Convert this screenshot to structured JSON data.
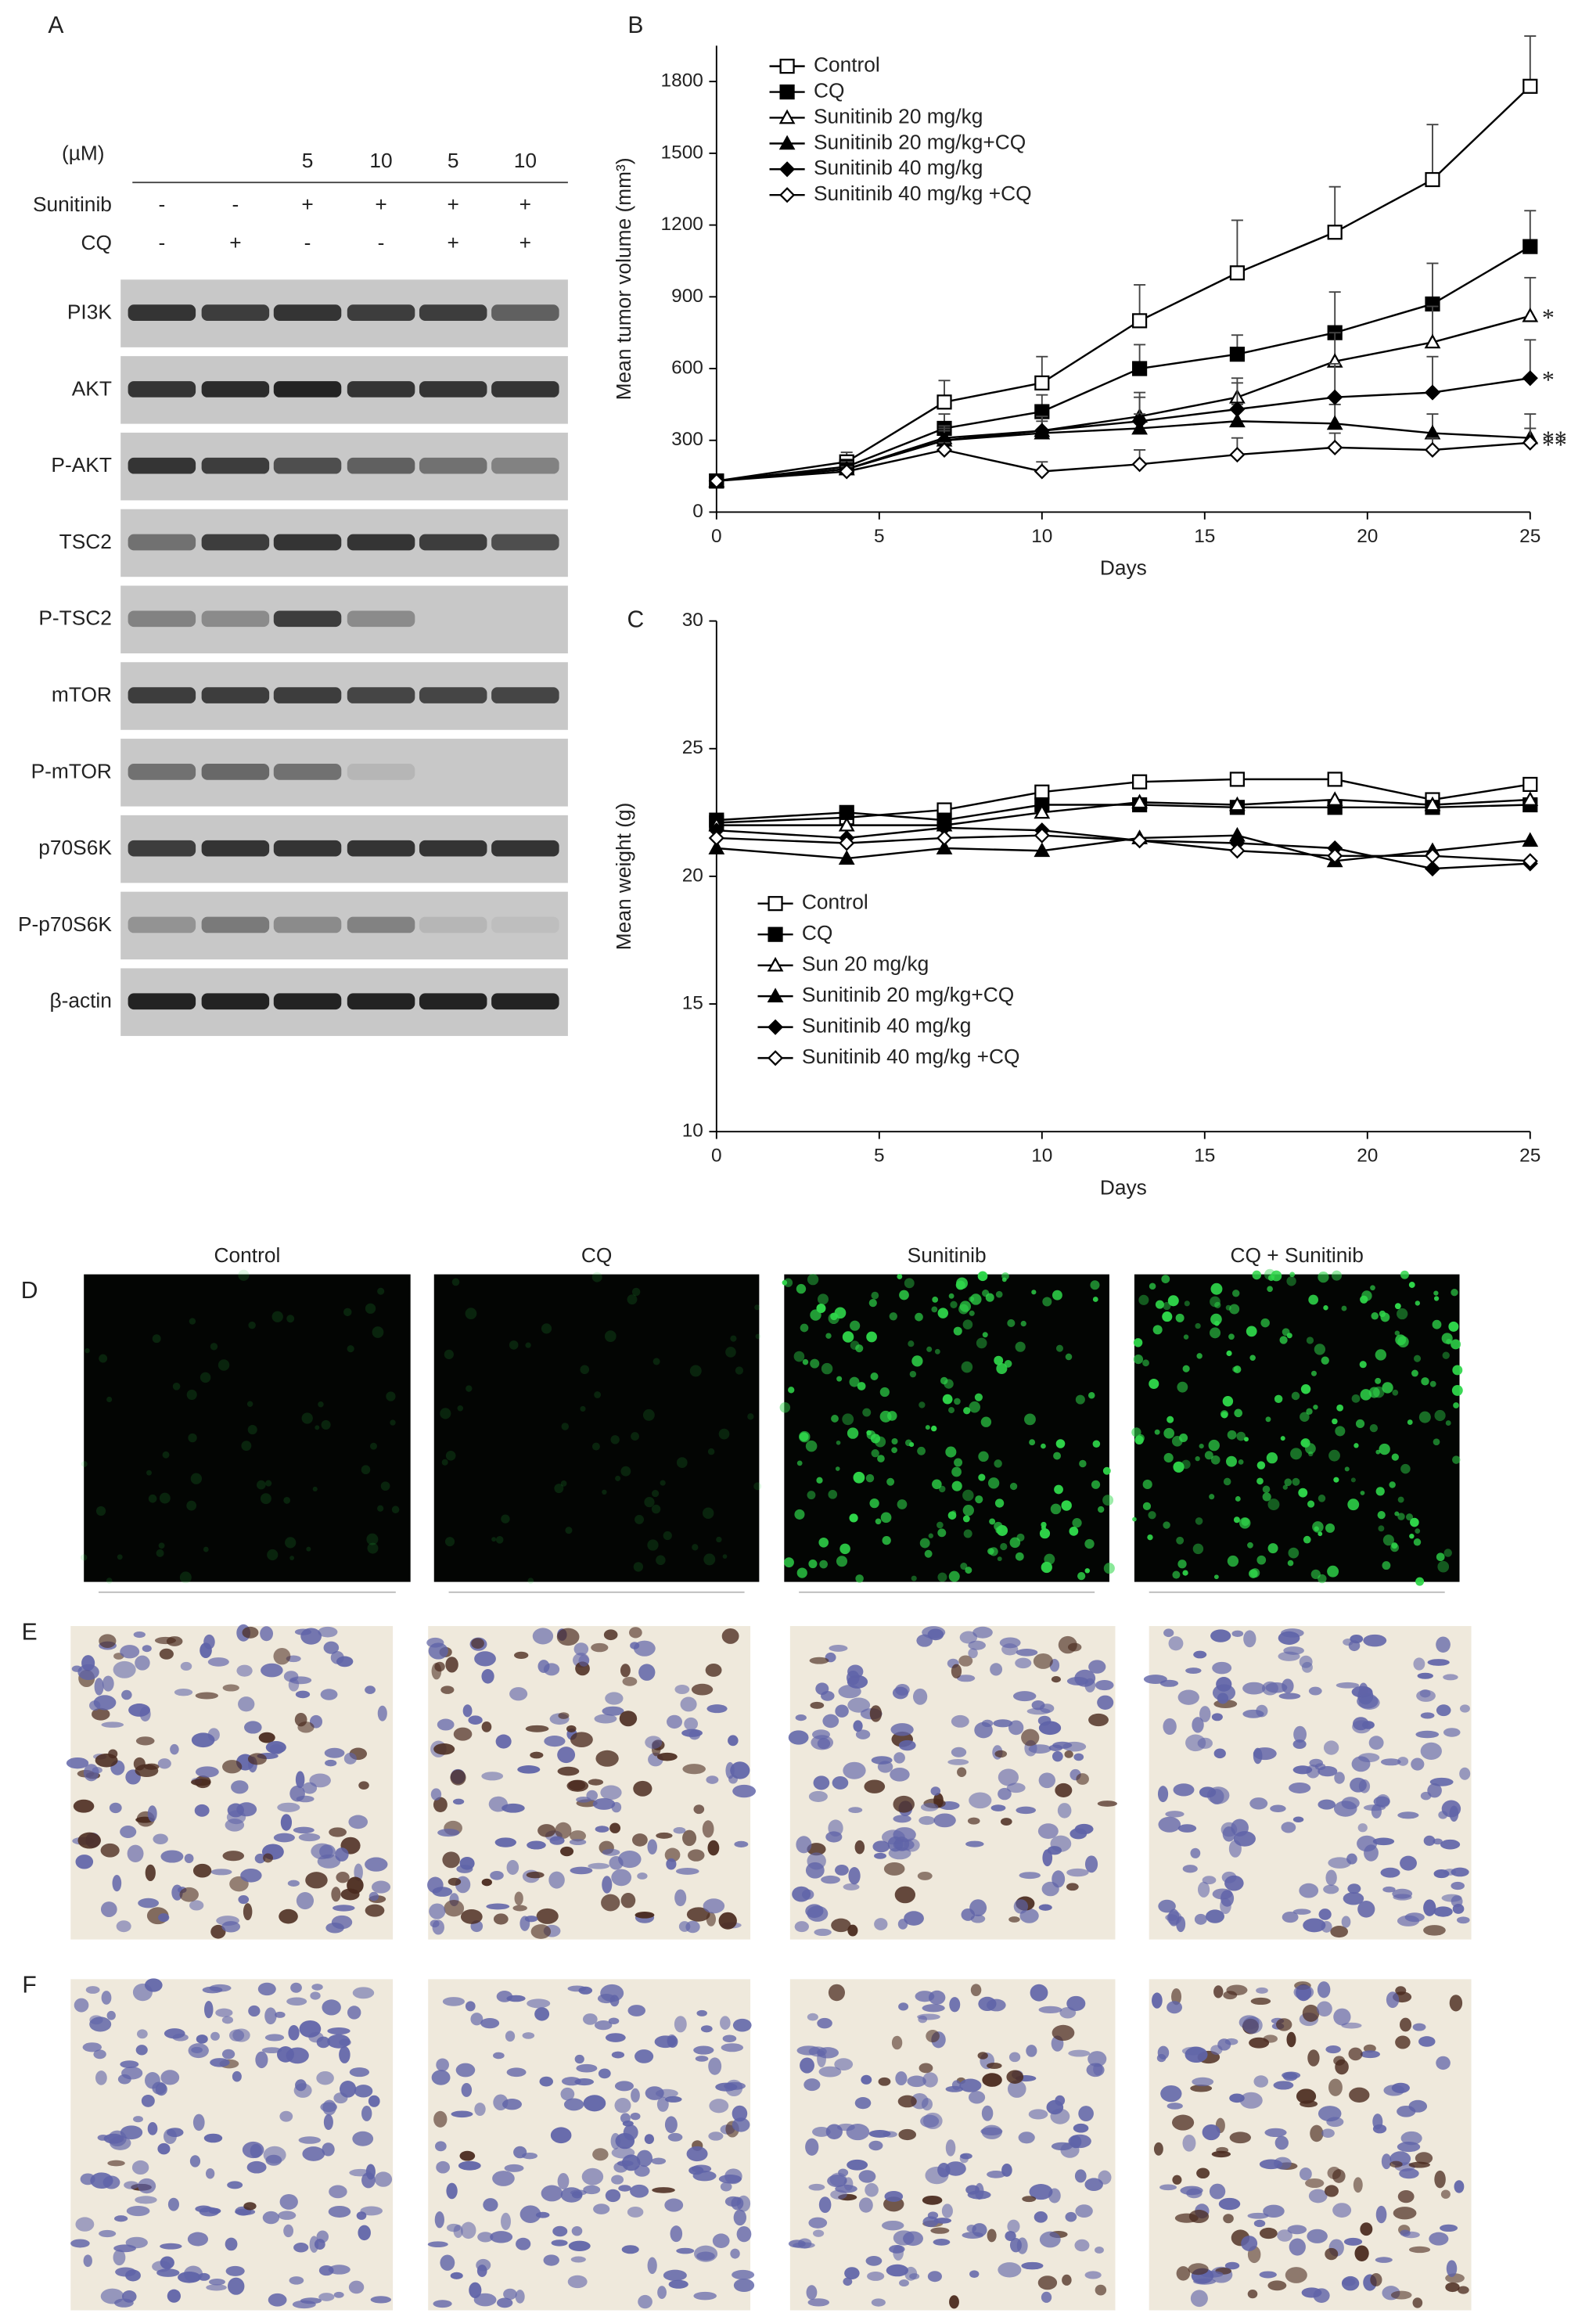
{
  "panel_labels": [
    "A",
    "B",
    "C",
    "D",
    "E",
    "F"
  ],
  "blot": {
    "unit": "(µM)",
    "concentrations": [
      null,
      null,
      5,
      10,
      5,
      10
    ],
    "treatments": [
      {
        "name": "Sunitinib",
        "signs": [
          "-",
          "-",
          "+",
          "+",
          "+",
          "+"
        ]
      },
      {
        "name": "CQ",
        "signs": [
          "-",
          "+",
          "-",
          "-",
          "+",
          "+"
        ]
      }
    ],
    "proteins": [
      "PI3K",
      "AKT",
      "P-AKT",
      "TSC2",
      "P-TSC2",
      "mTOR",
      "P-mTOR",
      "p70S6K",
      "P-p70S6K",
      "β-actin"
    ]
  },
  "chart_data": [
    {
      "type": "line",
      "y_label": "Mean tumor volume (mm³)",
      "x_label": "Days",
      "x": [
        0,
        4,
        7,
        10,
        13,
        16,
        19,
        22,
        25
      ],
      "xlim": [
        0,
        25
      ],
      "xticks": [
        0,
        5,
        10,
        15,
        20,
        25
      ],
      "ylim": [
        0,
        1950
      ],
      "yticks": [
        0,
        300,
        600,
        900,
        1200,
        1500,
        1800
      ],
      "legend": "top-left",
      "series": [
        {
          "name": "Control",
          "color": "#000000",
          "marker": "square-open",
          "values": [
            130,
            210,
            460,
            540,
            800,
            1000,
            1170,
            1390,
            1780
          ],
          "errors": [
            0,
            40,
            90,
            110,
            150,
            220,
            190,
            230,
            210
          ]
        },
        {
          "name": "CQ",
          "color": "#000000",
          "marker": "square-filled",
          "values": [
            130,
            190,
            350,
            420,
            600,
            660,
            750,
            870,
            1110
          ],
          "errors": [
            0,
            30,
            60,
            70,
            100,
            80,
            170,
            170,
            150
          ]
        },
        {
          "name": "Sunitinib 20 mg/kg",
          "color": "#000000",
          "marker": "triangle-open",
          "values": [
            130,
            180,
            310,
            340,
            400,
            480,
            630,
            710,
            820
          ],
          "errors": [
            0,
            30,
            50,
            60,
            100,
            60,
            120,
            150,
            160
          ],
          "annotation": "*"
        },
        {
          "name": "Sunitinib 20 mg/kg+CQ",
          "color": "#000000",
          "marker": "triangle-filled",
          "values": [
            130,
            180,
            300,
            330,
            350,
            380,
            370,
            330,
            310
          ],
          "errors": [
            0,
            30,
            40,
            50,
            60,
            70,
            80,
            80,
            100
          ],
          "annotation": "**"
        },
        {
          "name": "Sunitinib 40 mg/kg",
          "color": "#000000",
          "marker": "diamond-filled",
          "values": [
            130,
            180,
            300,
            340,
            380,
            430,
            480,
            500,
            560
          ],
          "errors": [
            0,
            30,
            50,
            60,
            100,
            130,
            140,
            150,
            160
          ],
          "annotation": "*"
        },
        {
          "name": "Sunitinib 40 mg/kg +CQ",
          "color": "#000000",
          "marker": "diamond-open",
          "values": [
            130,
            170,
            260,
            170,
            200,
            240,
            270,
            260,
            290
          ],
          "errors": [
            0,
            20,
            30,
            40,
            60,
            70,
            60,
            50,
            60
          ],
          "annotation": "**"
        }
      ]
    },
    {
      "type": "line",
      "y_label": "Mean weight (g)",
      "x_label": "Days",
      "x": [
        0,
        4,
        7,
        10,
        13,
        16,
        19,
        22,
        25
      ],
      "xlim": [
        0,
        25
      ],
      "xticks": [
        0,
        5,
        10,
        15,
        20,
        25
      ],
      "ylim": [
        10,
        30
      ],
      "yticks": [
        10,
        15,
        20,
        25,
        30
      ],
      "legend": "bottom-left",
      "series": [
        {
          "name": "Control",
          "color": "#000000",
          "marker": "square-open",
          "values": [
            22.1,
            22.3,
            22.6,
            23.3,
            23.7,
            23.8,
            23.8,
            23.0,
            23.6
          ]
        },
        {
          "name": "CQ",
          "color": "#000000",
          "marker": "square-filled",
          "values": [
            22.2,
            22.5,
            22.2,
            22.8,
            22.8,
            22.7,
            22.7,
            22.7,
            22.8
          ]
        },
        {
          "name": "Sun 20 mg/kg",
          "color": "#000000",
          "marker": "triangle-open",
          "values": [
            22.0,
            22.0,
            22.0,
            22.5,
            22.9,
            22.8,
            23.0,
            22.8,
            23.0
          ]
        },
        {
          "name": "Sunitinib 20 mg/kg+CQ",
          "color": "#000000",
          "marker": "triangle-filled",
          "values": [
            21.1,
            20.7,
            21.1,
            21.0,
            21.5,
            21.6,
            20.6,
            21.0,
            21.4
          ]
        },
        {
          "name": "Sunitinib 40 mg/kg",
          "color": "#000000",
          "marker": "diamond-filled",
          "values": [
            21.8,
            21.5,
            21.9,
            21.8,
            21.4,
            21.3,
            21.1,
            20.3,
            20.5
          ]
        },
        {
          "name": "Sunitinib 40 mg/kg +CQ",
          "color": "#000000",
          "marker": "diamond-open",
          "values": [
            21.5,
            21.3,
            21.5,
            21.6,
            21.4,
            21.0,
            20.8,
            20.8,
            20.6
          ]
        }
      ]
    }
  ],
  "micrographs": {
    "columns": [
      "Control",
      "CQ",
      "Sunitinib",
      "CQ + Sunitinib"
    ]
  }
}
